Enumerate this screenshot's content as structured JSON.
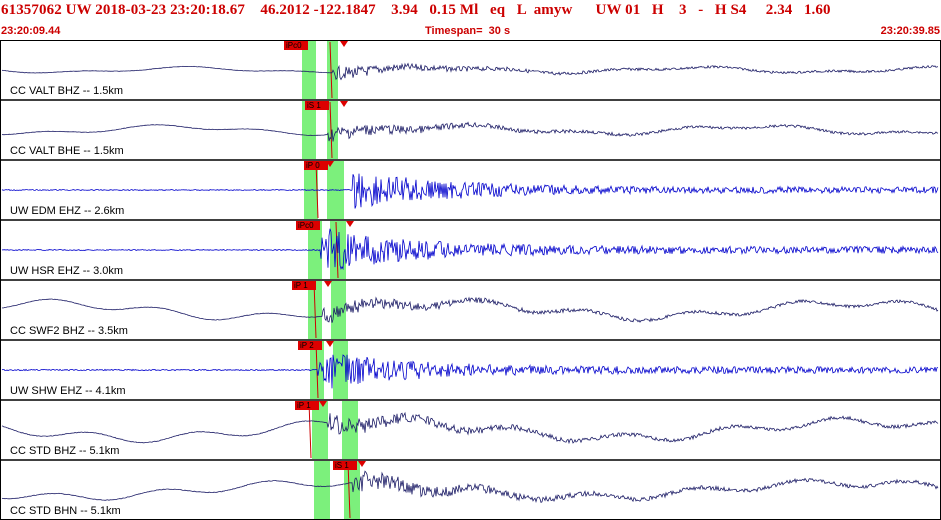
{
  "header": {
    "event_line": "61357062 UW 2018-03-23 23:20:18.67    46.2012 -122.1847    3.94   0.15 Ml   eq   L  amyw      UW 01   H    3   -   H S4     2.34   1.60",
    "start_time": "23:20:09.44",
    "timespan": "Timespan=  30 s",
    "end_time": "23:20:39.85"
  },
  "colors": {
    "header_text": "#cc0000",
    "trace_dark": "#1c1c66",
    "trace_blue": "#0000cc",
    "pick_fill": "#dd0000",
    "arrival_band": "#7cf07c",
    "arrival_line": "#cc0000"
  },
  "channels": [
    {
      "label": "CC VALT BHZ -- 1.5km",
      "pick": "iPc0",
      "color": "trace_dark",
      "amp": 0.3,
      "lf": 0.2,
      "hf": 0.05,
      "onset": 340
    },
    {
      "label": "CC VALT BHE -- 1.5km",
      "pick": "iS 1",
      "color": "trace_dark",
      "amp": 0.35,
      "lf": 0.3,
      "hf": 0.05,
      "onset": 335
    },
    {
      "label": "UW EDM EHZ -- 2.6km",
      "pick": "iP 0",
      "color": "trace_blue",
      "amp": 0.9,
      "lf": 0.0,
      "hf": 0.12,
      "onset": 360
    },
    {
      "label": "UW HSR EHZ -- 3.0km",
      "pick": "iPc0",
      "color": "trace_blue",
      "amp": 1.0,
      "lf": 0.0,
      "hf": 0.12,
      "onset": 328
    },
    {
      "label": "CC SWF2 BHZ -- 3.5km",
      "pick": "iP 1",
      "color": "trace_dark",
      "amp": 0.4,
      "lf": 0.6,
      "hf": 0.06,
      "onset": 330
    },
    {
      "label": "UW SHW EHZ -- 4.1km",
      "pick": "iP 2",
      "color": "trace_blue",
      "amp": 0.9,
      "lf": 0.0,
      "hf": 0.15,
      "onset": 325
    },
    {
      "label": "CC STD BHZ -- 5.1km",
      "pick": "iP 1",
      "color": "trace_dark",
      "amp": 0.45,
      "lf": 0.7,
      "hf": 0.08,
      "onset": 335
    },
    {
      "label": "CC STD BHN -- 5.1km",
      "pick": "iS 1",
      "color": "trace_dark",
      "amp": 0.5,
      "lf": 0.6,
      "hf": 0.08,
      "onset": 360
    }
  ]
}
